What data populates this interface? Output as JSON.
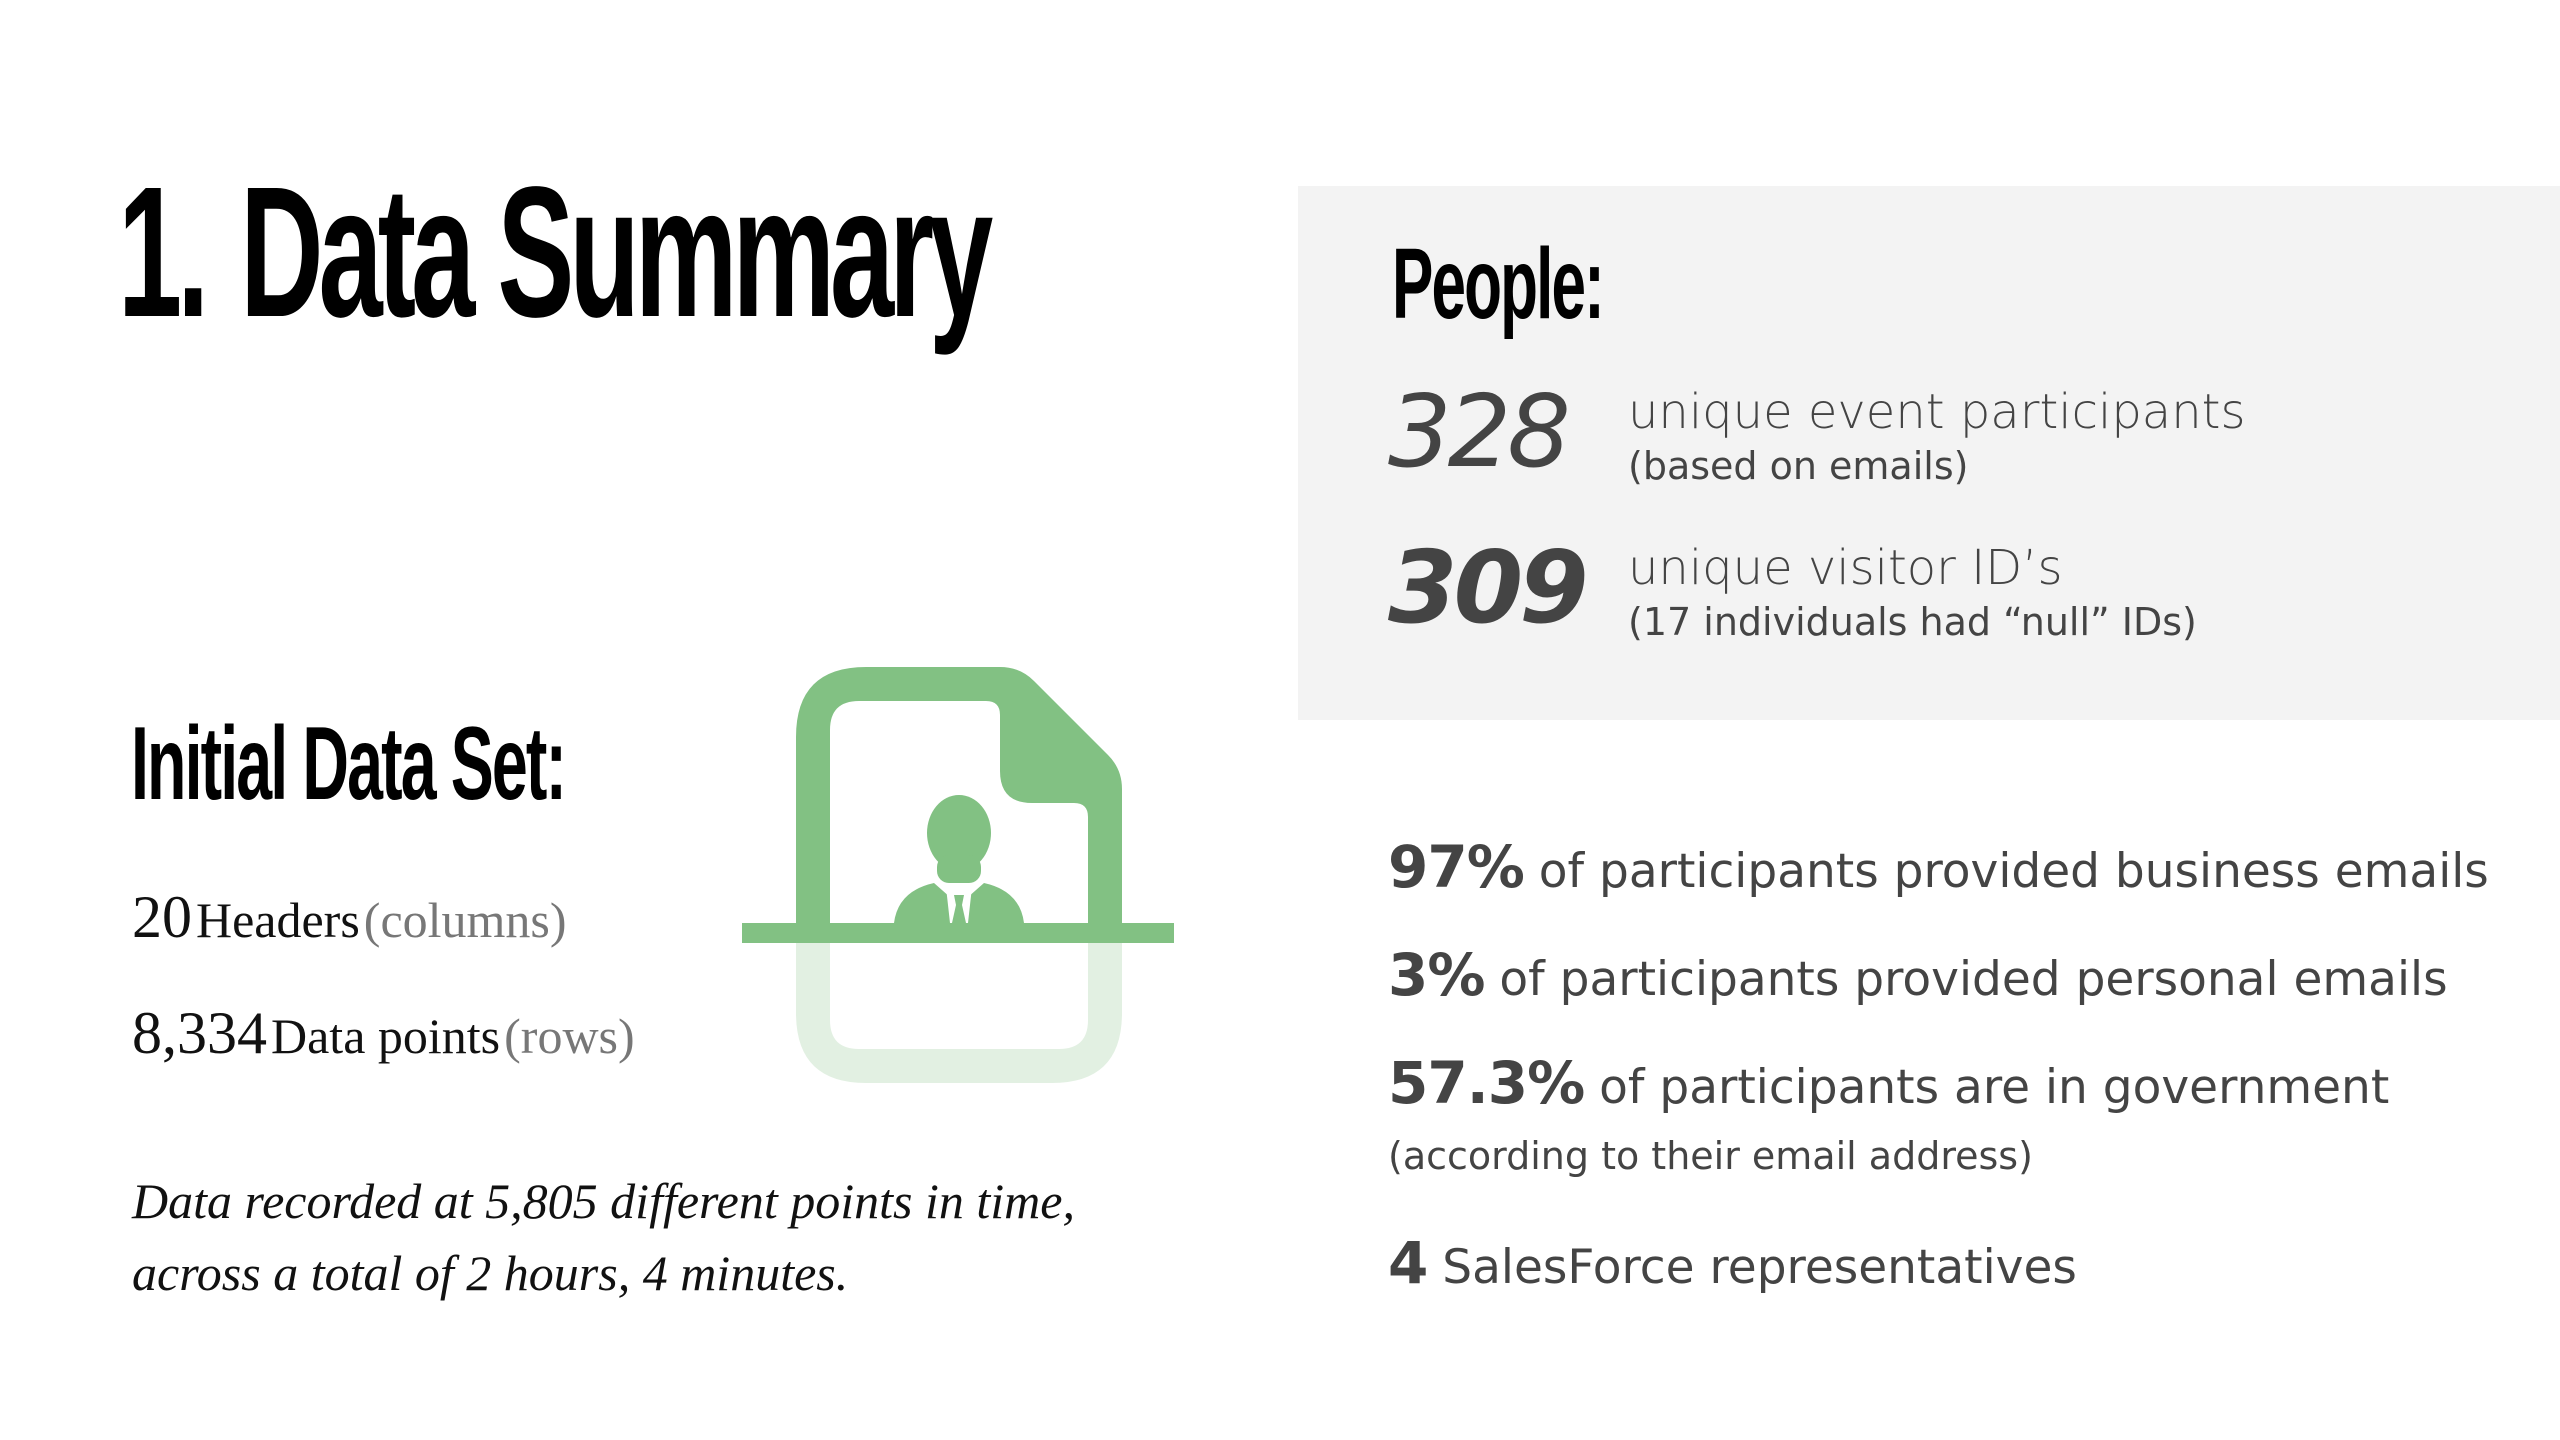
{
  "slide": {
    "title_number": "1.",
    "title_text": "Data Summary"
  },
  "initial_data_set": {
    "heading": "Initial Data Set:",
    "headers_count": "20",
    "headers_label": "Headers",
    "headers_note": "(columns)",
    "rows_count": "8,334",
    "rows_label": "Data points",
    "rows_note": "(rows)",
    "recorded_note": "Data recorded at 5,805 different points in time, across a total of 2 hours, 4 minutes.",
    "icon": "person-document-icon",
    "icon_colors": {
      "primary": "#82c183",
      "faded": "#e2f0e2"
    }
  },
  "people": {
    "heading": "People:",
    "participants_count": "328",
    "participants_label": "unique event participants",
    "participants_note": "(based on emails)",
    "visitors_count": "309",
    "visitors_label": "unique visitor ID’s",
    "visitors_note": "(17 individuals had “null” IDs)",
    "panel_color": "#f3f3f3"
  },
  "stats": {
    "business_pct": "97%",
    "business_text": " of participants provided business emails",
    "personal_pct": "3%",
    "personal_text": " of participants provided personal emails",
    "government_pct": "57.3%",
    "government_text": " of participants are in government",
    "government_note": "(according to their email address)",
    "reps_count": "4",
    "reps_text": " SalesForce representatives"
  }
}
